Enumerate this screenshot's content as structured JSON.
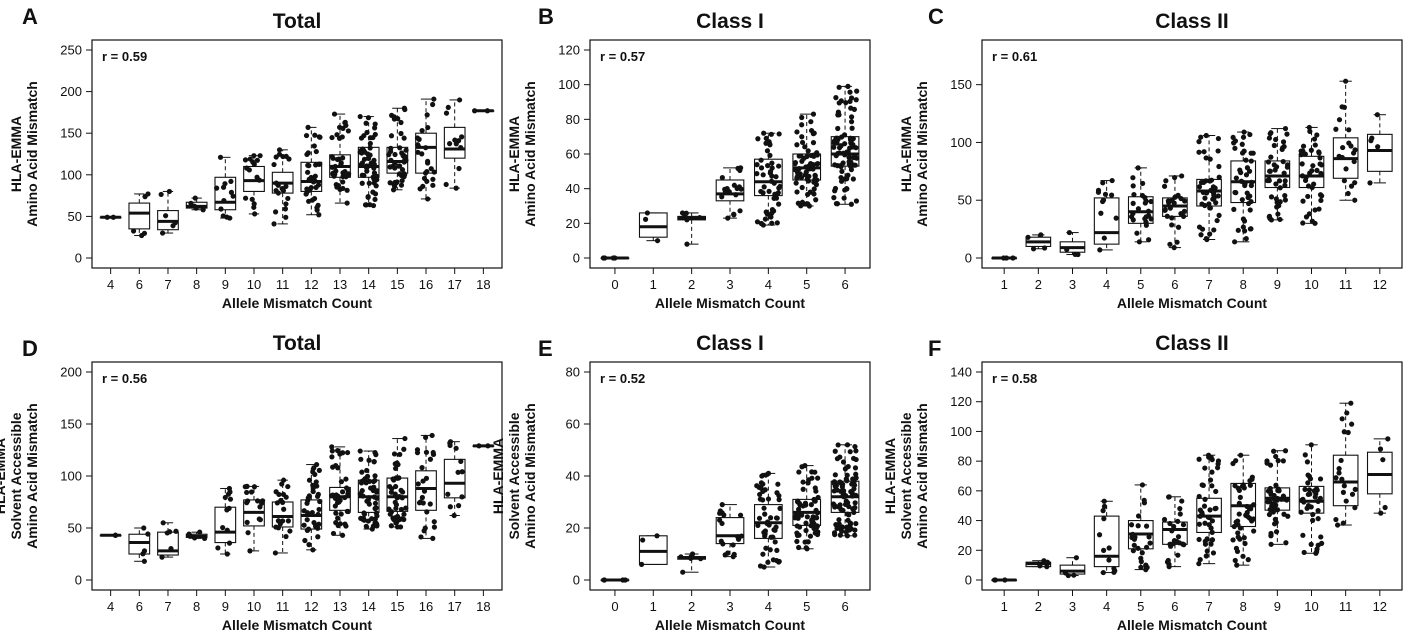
{
  "chart_data": [
    {
      "panel": "A",
      "title": "Total",
      "type": "box",
      "xlabel": "Allele Mismatch Count",
      "ylabel": [
        "HLA-EMMA",
        "Amino Acid Mismatch"
      ],
      "categories": [
        "4",
        "6",
        "7",
        "8",
        "9",
        "10",
        "11",
        "12",
        "13",
        "14",
        "15",
        "16",
        "17",
        "18"
      ],
      "ylim": [
        0,
        250
      ],
      "yticks": [
        0,
        50,
        100,
        150,
        200,
        250
      ],
      "annotation": "r = 0.59",
      "grid": false,
      "boxes": [
        {
          "min": 49,
          "q1": 49,
          "median": 49,
          "q3": 49,
          "max": 49,
          "n": 2
        },
        {
          "min": 27,
          "q1": 35,
          "median": 54,
          "q3": 66,
          "max": 77,
          "n": 5
        },
        {
          "min": 30,
          "q1": 34,
          "median": 44,
          "q3": 57,
          "max": 80,
          "n": 6
        },
        {
          "min": 58,
          "q1": 60,
          "median": 62,
          "q3": 67,
          "max": 72,
          "n": 5
        },
        {
          "min": 48,
          "q1": 58,
          "median": 67,
          "q3": 97,
          "max": 121,
          "n": 12
        },
        {
          "min": 53,
          "q1": 80,
          "median": 93,
          "q3": 110,
          "max": 123,
          "n": 16
        },
        {
          "min": 41,
          "q1": 78,
          "median": 90,
          "q3": 103,
          "max": 130,
          "n": 20
        },
        {
          "min": 52,
          "q1": 80,
          "median": 92,
          "q3": 115,
          "max": 157,
          "n": 35
        },
        {
          "min": 66,
          "q1": 97,
          "median": 110,
          "q3": 124,
          "max": 173,
          "n": 40
        },
        {
          "min": 63,
          "q1": 97,
          "median": 110,
          "q3": 133,
          "max": 170,
          "n": 55
        },
        {
          "min": 82,
          "q1": 102,
          "median": 116,
          "q3": 133,
          "max": 180,
          "n": 45
        },
        {
          "min": 71,
          "q1": 102,
          "median": 133,
          "q3": 150,
          "max": 191,
          "n": 25
        },
        {
          "min": 84,
          "q1": 120,
          "median": 131,
          "q3": 157,
          "max": 190,
          "n": 12
        },
        {
          "min": 177,
          "q1": 177,
          "median": 177,
          "q3": 177,
          "max": 177,
          "n": 2
        }
      ]
    },
    {
      "panel": "B",
      "title": "Class I",
      "type": "box",
      "xlabel": "Allele Mismatch Count",
      "ylabel": [
        "HLA-EMMA",
        "Amino Acid Mismatch"
      ],
      "categories": [
        "0",
        "1",
        "2",
        "3",
        "4",
        "5",
        "6"
      ],
      "ylim": [
        0,
        120
      ],
      "yticks": [
        0,
        20,
        40,
        60,
        80,
        100,
        120
      ],
      "annotation": "r = 0.57",
      "grid": false,
      "boxes": [
        {
          "min": 0,
          "q1": 0,
          "median": 0,
          "q3": 0,
          "max": 0,
          "n": 4
        },
        {
          "min": 10,
          "q1": 12,
          "median": 18,
          "q3": 26,
          "max": 26,
          "n": 3
        },
        {
          "min": 8,
          "q1": 22,
          "median": 23,
          "q3": 24,
          "max": 26,
          "n": 6
        },
        {
          "min": 23,
          "q1": 33,
          "median": 37,
          "q3": 45,
          "max": 52,
          "n": 18
        },
        {
          "min": 19,
          "q1": 36,
          "median": 44,
          "q3": 57,
          "max": 72,
          "n": 50
        },
        {
          "min": 30,
          "q1": 45,
          "median": 52,
          "q3": 60,
          "max": 83,
          "n": 70
        },
        {
          "min": 31,
          "q1": 53,
          "median": 60,
          "q3": 70,
          "max": 99,
          "n": 90
        }
      ]
    },
    {
      "panel": "C",
      "title": "Class II",
      "type": "box",
      "xlabel": "Allele Mismatch Count",
      "ylabel": [
        "HLA-EMMA",
        "Amino Acid Mismatch"
      ],
      "categories": [
        "1",
        "2",
        "3",
        "4",
        "5",
        "6",
        "7",
        "8",
        "9",
        "10",
        "11",
        "12"
      ],
      "ylim": [
        0,
        180
      ],
      "yticks": [
        0,
        50,
        100,
        150
      ],
      "annotation": "r = 0.61",
      "grid": false,
      "boxes": [
        {
          "min": 0,
          "q1": 0,
          "median": 0,
          "q3": 0,
          "max": 0,
          "n": 3
        },
        {
          "min": 8,
          "q1": 10,
          "median": 14,
          "q3": 18,
          "max": 20,
          "n": 4
        },
        {
          "min": 3,
          "q1": 5,
          "median": 9,
          "q3": 14,
          "max": 22,
          "n": 4
        },
        {
          "min": 7,
          "q1": 12,
          "median": 22,
          "q3": 52,
          "max": 67,
          "n": 12
        },
        {
          "min": 14,
          "q1": 30,
          "median": 40,
          "q3": 53,
          "max": 78,
          "n": 25
        },
        {
          "min": 9,
          "q1": 36,
          "median": 45,
          "q3": 52,
          "max": 71,
          "n": 25
        },
        {
          "min": 16,
          "q1": 45,
          "median": 58,
          "q3": 68,
          "max": 106,
          "n": 45
        },
        {
          "min": 14,
          "q1": 48,
          "median": 66,
          "q3": 84,
          "max": 109,
          "n": 45
        },
        {
          "min": 33,
          "q1": 61,
          "median": 71,
          "q3": 84,
          "max": 112,
          "n": 45
        },
        {
          "min": 30,
          "q1": 61,
          "median": 71,
          "q3": 88,
          "max": 113,
          "n": 40
        },
        {
          "min": 50,
          "q1": 69,
          "median": 86,
          "q3": 104,
          "max": 153,
          "n": 20
        },
        {
          "min": 65,
          "q1": 75,
          "median": 93,
          "q3": 107,
          "max": 124,
          "n": 5
        }
      ]
    },
    {
      "panel": "D",
      "title": "Total",
      "type": "box",
      "xlabel": "Allele Mismatch Count",
      "ylabel": [
        "HLA-EMMA",
        "Solvent Accessible",
        "Amino Acid Mismatch"
      ],
      "categories": [
        "4",
        "6",
        "7",
        "8",
        "9",
        "10",
        "11",
        "12",
        "13",
        "14",
        "15",
        "16",
        "17",
        "18"
      ],
      "ylim": [
        0,
        200
      ],
      "yticks": [
        0,
        50,
        100,
        150,
        200
      ],
      "annotation": "r = 0.56",
      "grid": false,
      "boxes": [
        {
          "min": 43,
          "q1": 43,
          "median": 43,
          "q3": 43,
          "max": 43,
          "n": 2
        },
        {
          "min": 18,
          "q1": 25,
          "median": 36,
          "q3": 44,
          "max": 50,
          "n": 5
        },
        {
          "min": 22,
          "q1": 24,
          "median": 28,
          "q3": 46,
          "max": 55,
          "n": 6
        },
        {
          "min": 40,
          "q1": 41,
          "median": 42,
          "q3": 44,
          "max": 46,
          "n": 5
        },
        {
          "min": 25,
          "q1": 36,
          "median": 46,
          "q3": 70,
          "max": 88,
          "n": 12
        },
        {
          "min": 28,
          "q1": 52,
          "median": 65,
          "q3": 77,
          "max": 90,
          "n": 16
        },
        {
          "min": 26,
          "q1": 51,
          "median": 61,
          "q3": 75,
          "max": 96,
          "n": 20
        },
        {
          "min": 29,
          "q1": 49,
          "median": 62,
          "q3": 77,
          "max": 111,
          "n": 35
        },
        {
          "min": 43,
          "q1": 67,
          "median": 80,
          "q3": 89,
          "max": 128,
          "n": 40
        },
        {
          "min": 49,
          "q1": 65,
          "median": 80,
          "q3": 96,
          "max": 124,
          "n": 55
        },
        {
          "min": 51,
          "q1": 66,
          "median": 80,
          "q3": 98,
          "max": 136,
          "n": 45
        },
        {
          "min": 40,
          "q1": 67,
          "median": 88,
          "q3": 105,
          "max": 139,
          "n": 25
        },
        {
          "min": 62,
          "q1": 79,
          "median": 93,
          "q3": 116,
          "max": 133,
          "n": 12
        },
        {
          "min": 129,
          "q1": 129,
          "median": 129,
          "q3": 129,
          "max": 129,
          "n": 2
        }
      ]
    },
    {
      "panel": "E",
      "title": "Class I",
      "type": "box",
      "xlabel": "Allele Mismatch Count",
      "ylabel": [
        "HLA-EMMA",
        "Solvent Accessible",
        "Amino Acid Mismatch"
      ],
      "categories": [
        "0",
        "1",
        "2",
        "3",
        "4",
        "5",
        "6"
      ],
      "ylim": [
        0,
        80
      ],
      "yticks": [
        0,
        20,
        40,
        60,
        80
      ],
      "annotation": "r = 0.52",
      "grid": false,
      "boxes": [
        {
          "min": 0,
          "q1": 0,
          "median": 0,
          "q3": 0,
          "max": 0,
          "n": 4
        },
        {
          "min": 6,
          "q1": 6,
          "median": 11,
          "q3": 17,
          "max": 17,
          "n": 3
        },
        {
          "min": 3,
          "q1": 8,
          "median": 8.5,
          "q3": 9,
          "max": 10,
          "n": 6
        },
        {
          "min": 9,
          "q1": 14,
          "median": 17,
          "q3": 24,
          "max": 29,
          "n": 18
        },
        {
          "min": 5,
          "q1": 16,
          "median": 22,
          "q3": 29,
          "max": 41,
          "n": 50
        },
        {
          "min": 12,
          "q1": 21,
          "median": 26,
          "q3": 31,
          "max": 44,
          "n": 70
        },
        {
          "min": 17,
          "q1": 26,
          "median": 32,
          "q3": 38,
          "max": 52,
          "n": 90
        }
      ]
    },
    {
      "panel": "F",
      "title": "Class II",
      "type": "box",
      "xlabel": "Allele Mismatch Count",
      "ylabel": [
        "HLA-EMMA",
        "Solvent Accessible",
        "Amino Acid Mismatch"
      ],
      "categories": [
        "1",
        "2",
        "3",
        "4",
        "5",
        "6",
        "7",
        "8",
        "9",
        "10",
        "11",
        "12"
      ],
      "ylim": [
        0,
        140
      ],
      "yticks": [
        0,
        20,
        40,
        60,
        80,
        100,
        120,
        140
      ],
      "annotation": "r = 0.58",
      "grid": false,
      "boxes": [
        {
          "min": 0,
          "q1": 0,
          "median": 0,
          "q3": 0,
          "max": 0,
          "n": 3
        },
        {
          "min": 9,
          "q1": 9,
          "median": 11,
          "q3": 12,
          "max": 13,
          "n": 4
        },
        {
          "min": 3,
          "q1": 4,
          "median": 6,
          "q3": 10,
          "max": 15,
          "n": 4
        },
        {
          "min": 5,
          "q1": 9,
          "median": 16,
          "q3": 43,
          "max": 53,
          "n": 12
        },
        {
          "min": 7,
          "q1": 21,
          "median": 31,
          "q3": 40,
          "max": 64,
          "n": 25
        },
        {
          "min": 9,
          "q1": 24,
          "median": 34,
          "q3": 39,
          "max": 56,
          "n": 25
        },
        {
          "min": 11,
          "q1": 32,
          "median": 43,
          "q3": 55,
          "max": 84,
          "n": 45
        },
        {
          "min": 10,
          "q1": 36,
          "median": 50,
          "q3": 65,
          "max": 84,
          "n": 45
        },
        {
          "min": 24,
          "q1": 47,
          "median": 55,
          "q3": 62,
          "max": 87,
          "n": 45
        },
        {
          "min": 18,
          "q1": 45,
          "median": 53,
          "q3": 63,
          "max": 91,
          "n": 40
        },
        {
          "min": 37,
          "q1": 50,
          "median": 66,
          "q3": 84,
          "max": 119,
          "n": 20
        },
        {
          "min": 45,
          "q1": 58,
          "median": 71,
          "q3": 86,
          "max": 95,
          "n": 5
        }
      ]
    }
  ]
}
